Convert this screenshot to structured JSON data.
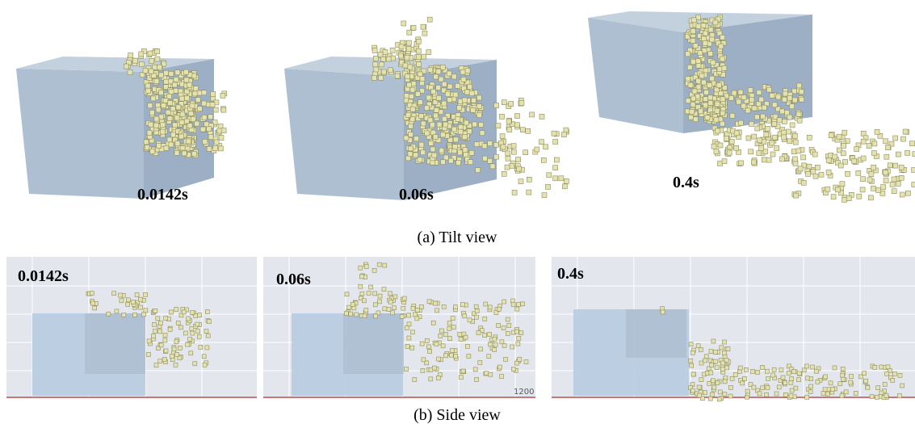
{
  "tilt_view": {
    "panels": [
      {
        "time": "0.0142s"
      },
      {
        "time": "0.06s"
      },
      {
        "time": "0.4s"
      }
    ],
    "caption": "(a) Tilt view"
  },
  "side_view": {
    "panels": [
      {
        "time": "0.0142s"
      },
      {
        "time": "0.06s",
        "axis_label": "1200"
      },
      {
        "time": "0.4s"
      }
    ],
    "caption": "(b) Side view"
  }
}
